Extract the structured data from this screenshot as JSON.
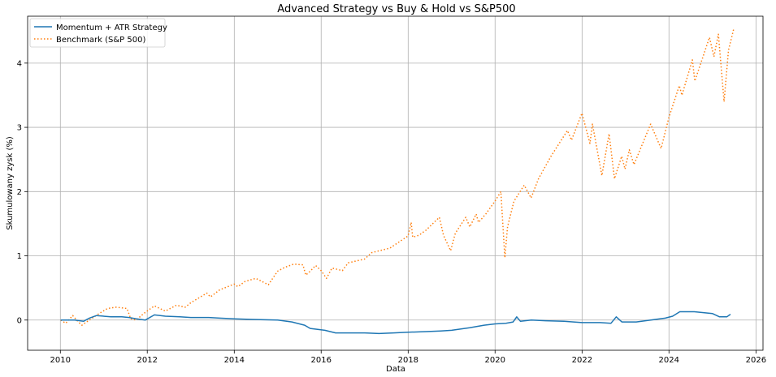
{
  "chart_data": {
    "type": "line",
    "title": "Advanced Strategy vs Buy & Hold vs S&P500",
    "xlabel": "Data",
    "ylabel": "Skumulowany zysk (%)",
    "xlim": [
      "2009-04-01",
      "2026-03-01"
    ],
    "ylim": [
      -0.47,
      4.73
    ],
    "x_ticks": [
      "2010",
      "2012",
      "2014",
      "2016",
      "2018",
      "2020",
      "2022",
      "2024",
      "2026"
    ],
    "y_ticks": [
      "0",
      "1",
      "2",
      "3",
      "4"
    ],
    "grid": true,
    "legend_position": "top-left",
    "series": [
      {
        "name": "Momentum + ATR Strategy",
        "color": "#1f77b4",
        "style": "solid",
        "points": [
          [
            "2010-01-04",
            0.0
          ],
          [
            "2010-05-01",
            0.0
          ],
          [
            "2010-07-15",
            -0.02
          ],
          [
            "2010-09-01",
            0.03
          ],
          [
            "2010-11-01",
            0.07
          ],
          [
            "2011-03-01",
            0.05
          ],
          [
            "2011-06-01",
            0.05
          ],
          [
            "2011-08-01",
            0.04
          ],
          [
            "2011-10-01",
            0.02
          ],
          [
            "2011-12-15",
            0.0
          ],
          [
            "2012-03-01",
            0.08
          ],
          [
            "2012-06-01",
            0.06
          ],
          [
            "2012-10-01",
            0.05
          ],
          [
            "2013-01-01",
            0.04
          ],
          [
            "2013-06-01",
            0.04
          ],
          [
            "2013-09-01",
            0.03
          ],
          [
            "2014-01-01",
            0.02
          ],
          [
            "2014-06-01",
            0.01
          ],
          [
            "2015-01-01",
            0.0
          ],
          [
            "2015-05-01",
            -0.03
          ],
          [
            "2015-08-15",
            -0.08
          ],
          [
            "2015-10-01",
            -0.13
          ],
          [
            "2016-02-01",
            -0.16
          ],
          [
            "2016-05-01",
            -0.2
          ],
          [
            "2016-09-01",
            -0.2
          ],
          [
            "2017-01-01",
            -0.2
          ],
          [
            "2017-05-01",
            -0.21
          ],
          [
            "2017-09-01",
            -0.2
          ],
          [
            "2018-01-01",
            -0.19
          ],
          [
            "2018-06-01",
            -0.18
          ],
          [
            "2018-10-01",
            -0.17
          ],
          [
            "2019-01-01",
            -0.16
          ],
          [
            "2019-06-01",
            -0.12
          ],
          [
            "2019-10-01",
            -0.08
          ],
          [
            "2020-01-01",
            -0.06
          ],
          [
            "2020-04-01",
            -0.05
          ],
          [
            "2020-06-01",
            -0.03
          ],
          [
            "2020-07-01",
            0.05
          ],
          [
            "2020-08-01",
            -0.02
          ],
          [
            "2020-11-01",
            0.0
          ],
          [
            "2021-03-01",
            -0.01
          ],
          [
            "2021-08-01",
            -0.02
          ],
          [
            "2022-01-01",
            -0.04
          ],
          [
            "2022-06-01",
            -0.04
          ],
          [
            "2022-09-01",
            -0.05
          ],
          [
            "2022-10-15",
            0.05
          ],
          [
            "2022-12-01",
            -0.03
          ],
          [
            "2023-04-01",
            -0.03
          ],
          [
            "2023-08-01",
            0.0
          ],
          [
            "2023-12-01",
            0.03
          ],
          [
            "2024-02-01",
            0.06
          ],
          [
            "2024-04-01",
            0.13
          ],
          [
            "2024-08-01",
            0.13
          ],
          [
            "2025-01-01",
            0.1
          ],
          [
            "2025-03-01",
            0.05
          ],
          [
            "2025-05-01",
            0.05
          ],
          [
            "2025-06-01",
            0.09
          ]
        ]
      },
      {
        "name": "Benchmark (S&P 500)",
        "color": "#ff7f0e",
        "style": "dotted",
        "points": [
          [
            "2010-01-04",
            0.0
          ],
          [
            "2010-02-15",
            -0.05
          ],
          [
            "2010-04-15",
            0.07
          ],
          [
            "2010-06-01",
            -0.03
          ],
          [
            "2010-07-01",
            -0.08
          ],
          [
            "2010-09-01",
            0.0
          ],
          [
            "2010-12-01",
            0.11
          ],
          [
            "2011-02-01",
            0.18
          ],
          [
            "2011-04-15",
            0.2
          ],
          [
            "2011-07-15",
            0.18
          ],
          [
            "2011-08-15",
            0.02
          ],
          [
            "2011-10-01",
            0.0
          ],
          [
            "2011-12-01",
            0.1
          ],
          [
            "2012-03-01",
            0.22
          ],
          [
            "2012-06-01",
            0.14
          ],
          [
            "2012-09-01",
            0.23
          ],
          [
            "2012-11-15",
            0.2
          ],
          [
            "2013-01-01",
            0.27
          ],
          [
            "2013-05-15",
            0.42
          ],
          [
            "2013-06-15",
            0.36
          ],
          [
            "2013-09-01",
            0.47
          ],
          [
            "2013-12-31",
            0.56
          ],
          [
            "2014-02-01",
            0.52
          ],
          [
            "2014-04-01",
            0.6
          ],
          [
            "2014-07-01",
            0.65
          ],
          [
            "2014-10-15",
            0.55
          ],
          [
            "2014-12-31",
            0.76
          ],
          [
            "2015-03-01",
            0.82
          ],
          [
            "2015-05-15",
            0.87
          ],
          [
            "2015-08-01",
            0.86
          ],
          [
            "2015-08-25",
            0.7
          ],
          [
            "2015-10-01",
            0.76
          ],
          [
            "2015-11-15",
            0.85
          ],
          [
            "2016-01-01",
            0.77
          ],
          [
            "2016-02-15",
            0.65
          ],
          [
            "2016-04-01",
            0.81
          ],
          [
            "2016-06-27",
            0.77
          ],
          [
            "2016-08-15",
            0.89
          ],
          [
            "2016-12-31",
            0.95
          ],
          [
            "2017-03-01",
            1.05
          ],
          [
            "2017-08-01",
            1.12
          ],
          [
            "2017-12-31",
            1.31
          ],
          [
            "2018-01-26",
            1.52
          ],
          [
            "2018-02-08",
            1.29
          ],
          [
            "2018-04-01",
            1.32
          ],
          [
            "2018-06-01",
            1.4
          ],
          [
            "2018-09-20",
            1.6
          ],
          [
            "2018-10-25",
            1.32
          ],
          [
            "2018-12-24",
            1.08
          ],
          [
            "2019-02-01",
            1.35
          ],
          [
            "2019-04-30",
            1.6
          ],
          [
            "2019-06-03",
            1.45
          ],
          [
            "2019-07-26",
            1.65
          ],
          [
            "2019-08-15",
            1.52
          ],
          [
            "2019-10-15",
            1.65
          ],
          [
            "2019-12-31",
            1.85
          ],
          [
            "2020-02-19",
            2.0
          ],
          [
            "2020-03-23",
            0.97
          ],
          [
            "2020-04-15",
            1.45
          ],
          [
            "2020-06-08",
            1.85
          ],
          [
            "2020-09-02",
            2.1
          ],
          [
            "2020-10-30",
            1.9
          ],
          [
            "2020-12-31",
            2.2
          ],
          [
            "2021-04-15",
            2.55
          ],
          [
            "2021-08-31",
            2.95
          ],
          [
            "2021-10-04",
            2.8
          ],
          [
            "2021-12-31",
            3.22
          ],
          [
            "2022-03-08",
            2.75
          ],
          [
            "2022-03-29",
            3.05
          ],
          [
            "2022-06-16",
            2.25
          ],
          [
            "2022-08-16",
            2.9
          ],
          [
            "2022-09-30",
            2.2
          ],
          [
            "2022-11-30",
            2.55
          ],
          [
            "2022-12-28",
            2.35
          ],
          [
            "2023-02-02",
            2.65
          ],
          [
            "2023-03-13",
            2.42
          ],
          [
            "2023-07-31",
            3.05
          ],
          [
            "2023-10-27",
            2.67
          ],
          [
            "2023-12-31",
            3.15
          ],
          [
            "2024-03-28",
            3.65
          ],
          [
            "2024-04-19",
            3.5
          ],
          [
            "2024-07-16",
            4.05
          ],
          [
            "2024-08-05",
            3.72
          ],
          [
            "2024-12-06",
            4.4
          ],
          [
            "2025-01-13",
            4.1
          ],
          [
            "2025-02-19",
            4.45
          ],
          [
            "2025-04-08",
            3.4
          ],
          [
            "2025-05-15",
            4.2
          ],
          [
            "2025-06-30",
            4.55
          ]
        ]
      }
    ]
  }
}
